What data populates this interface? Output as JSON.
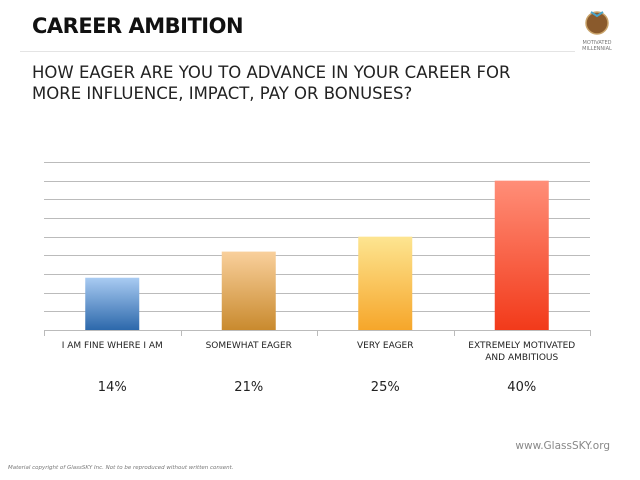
{
  "header": {
    "title": "CAREER AMBITION",
    "logo_text": "MOTIVATED MILLENNIAL"
  },
  "chart_data": {
    "type": "bar",
    "title": "HOW EAGER ARE YOU TO ADVANCE IN YOUR CAREER FOR MORE INFLUENCE, IMPACT, PAY OR BONUSES?",
    "categories": [
      "I AM FINE WHERE I AM",
      "SOMEWHAT EAGER",
      "VERY EAGER",
      "EXTREMELY MOTIVATED AND AMBITIOUS"
    ],
    "values": [
      14,
      21,
      25,
      40
    ],
    "value_labels": [
      "14%",
      "21%",
      "25%",
      "40%"
    ],
    "colors": [
      [
        "#a9cbf2",
        "#2c68ab"
      ],
      [
        "#f9d09c",
        "#c98a2e"
      ],
      [
        "#fde591",
        "#f6a62a"
      ],
      [
        "#ff8e78",
        "#f23a1a"
      ]
    ],
    "ylim": [
      0,
      45
    ],
    "yticks": [
      0,
      5,
      10,
      15,
      20,
      25,
      30,
      35,
      40,
      45
    ],
    "grid": true
  },
  "footer": {
    "website": "www.GlassSKY.org",
    "copyright": "Material copyright of GlassSKY Inc. Not to be reproduced without written consent."
  }
}
